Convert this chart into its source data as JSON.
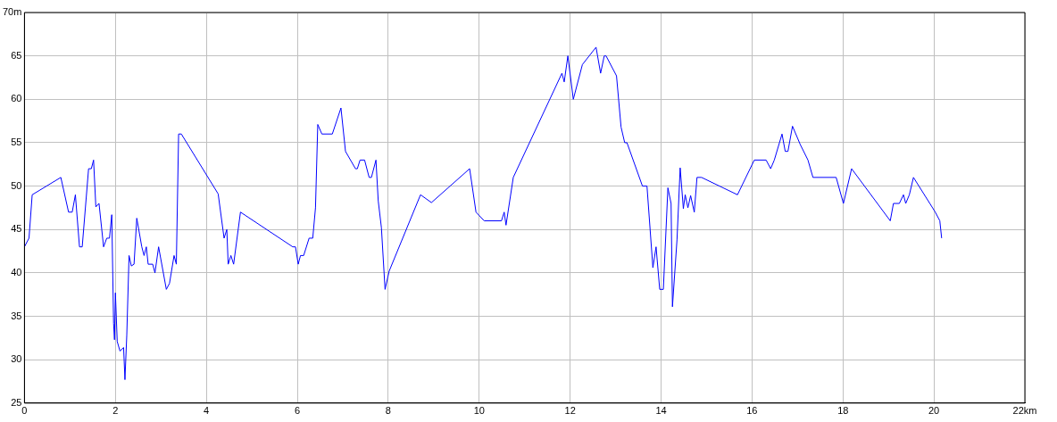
{
  "chart_data": {
    "type": "line",
    "x": [
      0,
      0.1,
      0.17,
      0.8,
      0.97,
      1.05,
      1.12,
      1.21,
      1.27,
      1.41,
      1.47,
      1.52,
      1.57,
      1.64,
      1.74,
      1.81,
      1.87,
      1.92,
      1.96,
      1.98,
      2.0,
      2.04,
      2.1,
      2.18,
      2.21,
      2.25,
      2.3,
      2.35,
      2.41,
      2.47,
      2.58,
      2.63,
      2.68,
      2.72,
      2.82,
      2.87,
      2.95,
      3.12,
      3.19,
      3.29,
      3.34,
      3.39,
      3.45,
      4.26,
      4.39,
      4.45,
      4.48,
      4.54,
      4.6,
      4.75,
      5.9,
      5.96,
      6.02,
      6.07,
      6.14,
      6.26,
      6.34,
      6.4,
      6.45,
      6.54,
      6.77,
      6.96,
      7.06,
      7.28,
      7.32,
      7.38,
      7.48,
      7.58,
      7.63,
      7.73,
      7.78,
      7.85,
      7.93,
      8.02,
      8.71,
      8.95,
      9.79,
      9.93,
      10.11,
      10.49,
      10.55,
      10.59,
      10.75,
      11.82,
      11.87,
      11.95,
      12.07,
      12.27,
      12.57,
      12.67,
      12.75,
      12.79,
      13.02,
      13.12,
      13.2,
      13.25,
      13.59,
      13.69,
      13.82,
      13.89,
      13.97,
      14.05,
      14.15,
      14.22,
      14.25,
      14.35,
      14.42,
      14.49,
      14.53,
      14.59,
      14.65,
      14.73,
      14.79,
      14.89,
      15.68,
      16.05,
      16.31,
      16.41,
      16.49,
      16.66,
      16.73,
      16.79,
      16.89,
      17.06,
      17.23,
      17.34,
      17.85,
      18.01,
      18.19,
      19.04,
      19.11,
      19.24,
      19.33,
      19.38,
      19.46,
      19.55,
      20.03,
      20.13,
      20.17
    ],
    "series": [
      {
        "color": "#0000ff",
        "values": [
          43,
          44,
          49,
          51,
          47,
          47,
          49,
          43,
          43,
          52,
          52,
          53,
          47.6,
          48,
          43,
          44,
          44,
          46.7,
          34.2,
          32.3,
          37.7,
          32.1,
          31,
          31.4,
          27.7,
          32.8,
          42,
          40.8,
          41,
          46.3,
          43,
          42,
          43,
          41,
          41,
          40,
          43,
          38.1,
          38.8,
          42,
          41,
          56,
          56,
          49.1,
          44,
          45,
          41,
          42,
          41,
          47,
          43,
          43,
          41,
          42,
          42,
          44,
          44,
          47.5,
          57.1,
          56,
          56,
          59,
          54,
          52,
          52,
          53,
          53,
          51,
          51,
          53,
          48.3,
          45.2,
          38.1,
          40.2,
          49,
          48.1,
          52,
          47,
          46,
          46,
          47,
          45.5,
          51,
          63,
          62,
          65,
          60,
          64,
          66,
          63,
          65,
          65,
          62.7,
          56.8,
          55,
          55,
          50,
          50,
          40.6,
          43,
          38.1,
          38.1,
          49.8,
          48,
          36.1,
          43.8,
          52.1,
          47.4,
          49,
          47.5,
          48.9,
          47,
          51,
          51,
          49,
          53,
          53,
          52,
          53,
          56,
          54,
          54,
          56.9,
          54.8,
          53,
          51,
          51,
          48,
          52,
          46,
          48,
          48,
          49,
          48,
          49,
          51,
          47,
          46,
          44
        ]
      }
    ],
    "xlim": [
      0,
      22
    ],
    "ylim": [
      25,
      70
    ],
    "xticks": [
      0,
      2,
      4,
      6,
      8,
      10,
      12,
      14,
      16,
      18,
      20,
      {
        "value": 22,
        "label": "22km"
      }
    ],
    "yticks": [
      25,
      30,
      35,
      40,
      45,
      50,
      55,
      60,
      65,
      {
        "value": 70,
        "label": "70m"
      }
    ],
    "grid": true
  }
}
